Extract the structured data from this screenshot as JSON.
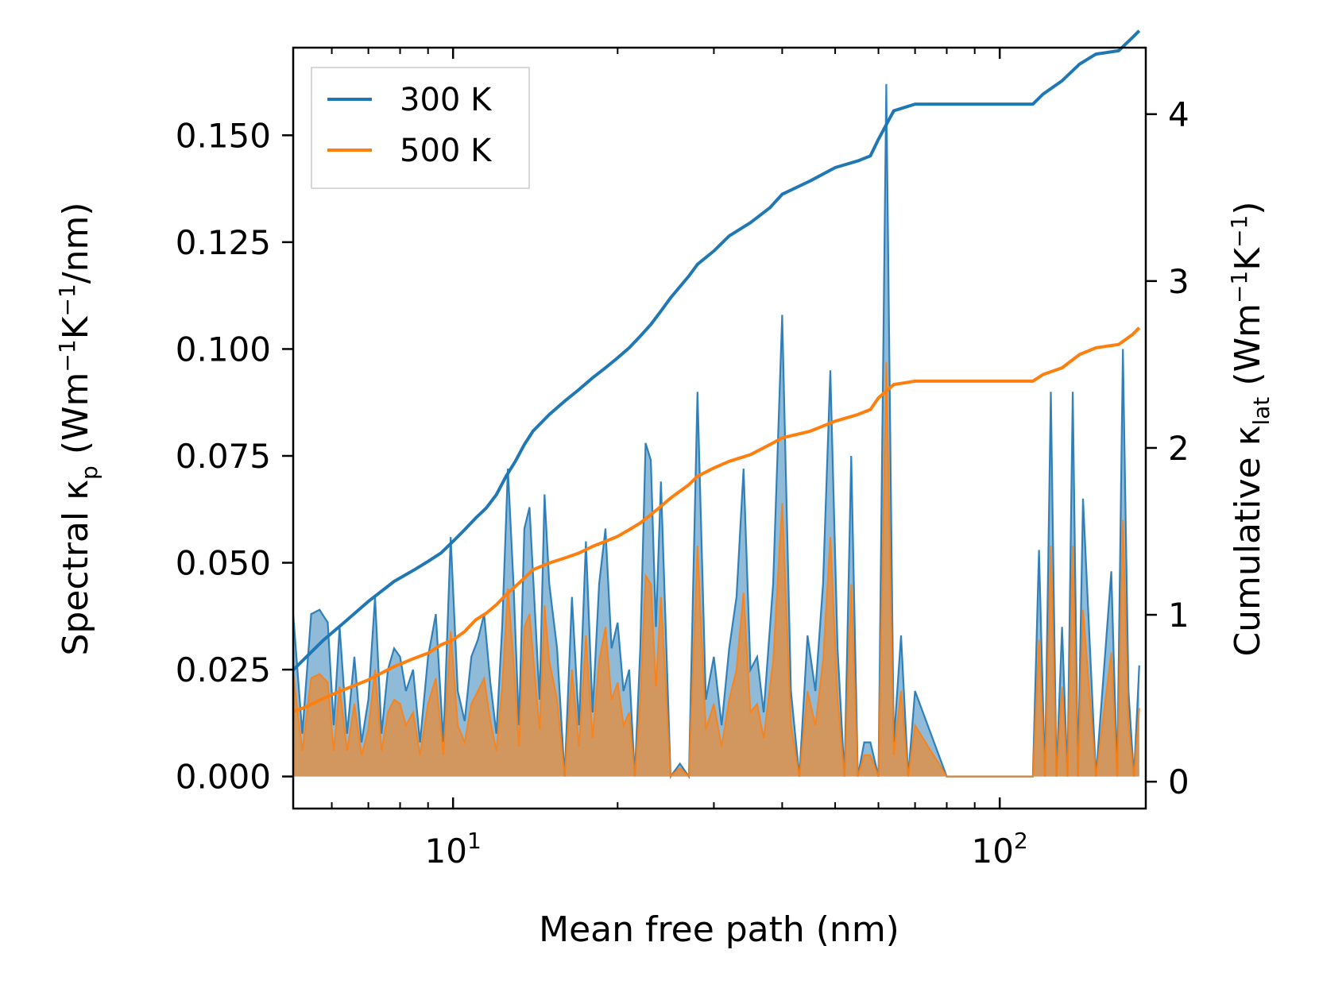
{
  "chart_data": {
    "type": "line",
    "xscale": "log",
    "xlim": [
      5.1,
      185
    ],
    "ylim_left": [
      -0.0075,
      0.1705
    ],
    "ylim_right": [
      -0.1611,
      4.3986
    ],
    "xlabel": "Mean free path (nm)",
    "ylabel_left": {
      "prefix": "Spectral κ",
      "sub": "p",
      "mid1": " (Wm",
      "sup1": "−1",
      "mid2": "K",
      "sup2": "−1",
      "suffix": "/nm)"
    },
    "ylabel_right": {
      "prefix": "Cumulative κ",
      "sub": "lat",
      "mid1": " (Wm",
      "sup1": "−1",
      "mid2": "K",
      "sup2": "−1",
      "suffix": ")"
    },
    "x_ticks": [
      {
        "value": 10,
        "base": "10",
        "exp": "1"
      },
      {
        "value": 100,
        "base": "10",
        "exp": "2"
      }
    ],
    "y_left_ticks": [
      {
        "value": 0.0,
        "label": "0.000"
      },
      {
        "value": 0.025,
        "label": "0.025"
      },
      {
        "value": 0.05,
        "label": "0.050"
      },
      {
        "value": 0.075,
        "label": "0.075"
      },
      {
        "value": 0.1,
        "label": "0.100"
      },
      {
        "value": 0.125,
        "label": "0.125"
      },
      {
        "value": 0.15,
        "label": "0.150"
      }
    ],
    "y_right_ticks": [
      {
        "value": 0,
        "label": "0"
      },
      {
        "value": 1,
        "label": "1"
      },
      {
        "value": 2,
        "label": "2"
      },
      {
        "value": 3,
        "label": "3"
      },
      {
        "value": 4,
        "label": "4"
      }
    ],
    "legend": {
      "position": "upper-left",
      "entries": [
        {
          "label": "300 K",
          "color": "#1f77b4"
        },
        {
          "label": "500 K",
          "color": "#ff7f0e"
        }
      ]
    },
    "series": [
      {
        "name": "300 K spectral",
        "axis": "left",
        "kind": "filled-line",
        "color": "#1f77b4",
        "x": [
          5.1,
          5.3,
          5.5,
          5.7,
          5.9,
          6.05,
          6.2,
          6.4,
          6.6,
          6.8,
          7.0,
          7.2,
          7.4,
          7.6,
          7.8,
          8.0,
          8.2,
          8.45,
          8.7,
          9.0,
          9.3,
          9.6,
          9.9,
          10.2,
          10.5,
          10.8,
          11.1,
          11.4,
          11.7,
          12.0,
          12.3,
          12.6,
          12.9,
          13.2,
          13.5,
          13.8,
          14.1,
          14.4,
          14.7,
          15.0,
          15.5,
          16.0,
          16.5,
          17.0,
          17.5,
          18.0,
          18.5,
          19.0,
          19.5,
          20.0,
          20.5,
          21.0,
          21.5,
          22.0,
          22.5,
          23.0,
          23.5,
          24.0,
          25.0,
          26.0,
          27.0,
          28.0,
          29.0,
          30.0,
          31.0,
          32.0,
          33.0,
          34.0,
          35.0,
          36.0,
          37.0,
          38.5,
          40.0,
          41.5,
          43.0,
          44.5,
          46.0,
          47.5,
          49.0,
          50.5,
          52.0,
          53.5,
          55.0,
          56.5,
          58.0,
          60.0,
          62.0,
          64.0,
          66.0,
          68.0,
          70.0,
          80.0,
          100.0,
          115.0,
          118.0,
          121.0,
          124.0,
          127.0,
          130.0,
          133.0,
          136.0,
          139.0,
          142.0,
          150.0,
          160.0,
          164.0,
          168.0,
          172.0,
          176.0,
          180.0
        ],
        "values": [
          0.038,
          0.01,
          0.038,
          0.039,
          0.036,
          0.012,
          0.035,
          0.01,
          0.028,
          0.008,
          0.018,
          0.042,
          0.01,
          0.025,
          0.03,
          0.028,
          0.02,
          0.025,
          0.008,
          0.028,
          0.038,
          0.008,
          0.056,
          0.02,
          0.013,
          0.028,
          0.032,
          0.038,
          0.022,
          0.01,
          0.035,
          0.072,
          0.045,
          0.012,
          0.058,
          0.063,
          0.04,
          0.018,
          0.066,
          0.045,
          0.03,
          0.0,
          0.042,
          0.012,
          0.055,
          0.015,
          0.045,
          0.058,
          0.03,
          0.036,
          0.02,
          0.025,
          0.0,
          0.03,
          0.078,
          0.074,
          0.035,
          0.069,
          0.0,
          0.003,
          0.0,
          0.09,
          0.018,
          0.028,
          0.012,
          0.03,
          0.042,
          0.072,
          0.025,
          0.028,
          0.015,
          0.045,
          0.108,
          0.02,
          0.0,
          0.033,
          0.02,
          0.045,
          0.095,
          0.03,
          0.0,
          0.075,
          0.0,
          0.008,
          0.008,
          0.0,
          0.162,
          0.008,
          0.033,
          0.0,
          0.02,
          0.0,
          0.0,
          0.0,
          0.053,
          0.0,
          0.09,
          0.0,
          0.035,
          0.0,
          0.09,
          0.0,
          0.065,
          0.0,
          0.048,
          0.0,
          0.1,
          0.02,
          0.0,
          0.026
        ]
      },
      {
        "name": "500 K spectral",
        "axis": "left",
        "kind": "filled-line",
        "color": "#ff7f0e",
        "x": [
          5.1,
          5.3,
          5.5,
          5.7,
          5.9,
          6.05,
          6.2,
          6.4,
          6.6,
          6.8,
          7.0,
          7.2,
          7.4,
          7.6,
          7.8,
          8.0,
          8.2,
          8.45,
          8.7,
          9.0,
          9.3,
          9.6,
          9.9,
          10.2,
          10.5,
          10.8,
          11.1,
          11.4,
          11.7,
          12.0,
          12.3,
          12.6,
          12.9,
          13.2,
          13.5,
          13.8,
          14.1,
          14.4,
          14.7,
          15.0,
          15.5,
          16.0,
          16.5,
          17.0,
          17.5,
          18.0,
          18.5,
          19.0,
          19.5,
          20.0,
          20.5,
          21.0,
          21.5,
          22.0,
          22.5,
          23.0,
          23.5,
          24.0,
          25.0,
          26.0,
          27.0,
          28.0,
          29.0,
          30.0,
          31.0,
          32.0,
          33.0,
          34.0,
          35.0,
          36.0,
          37.0,
          38.5,
          40.0,
          41.5,
          43.0,
          44.5,
          46.0,
          47.5,
          49.0,
          50.5,
          52.0,
          53.5,
          55.0,
          56.5,
          58.0,
          60.0,
          62.0,
          64.0,
          66.0,
          68.0,
          70.0,
          80.0,
          100.0,
          115.0,
          118.0,
          121.0,
          124.0,
          127.0,
          130.0,
          133.0,
          136.0,
          139.0,
          142.0,
          150.0,
          160.0,
          164.0,
          168.0,
          172.0,
          176.0,
          180.0
        ],
        "values": [
          0.024,
          0.006,
          0.023,
          0.024,
          0.022,
          0.006,
          0.021,
          0.006,
          0.017,
          0.005,
          0.011,
          0.025,
          0.006,
          0.015,
          0.018,
          0.017,
          0.012,
          0.015,
          0.005,
          0.017,
          0.023,
          0.005,
          0.034,
          0.012,
          0.008,
          0.017,
          0.02,
          0.023,
          0.013,
          0.006,
          0.021,
          0.044,
          0.027,
          0.007,
          0.035,
          0.038,
          0.024,
          0.011,
          0.04,
          0.027,
          0.018,
          0.0,
          0.025,
          0.007,
          0.033,
          0.009,
          0.027,
          0.035,
          0.018,
          0.022,
          0.012,
          0.015,
          0.0,
          0.018,
          0.047,
          0.045,
          0.021,
          0.042,
          0.0,
          0.002,
          0.0,
          0.054,
          0.011,
          0.017,
          0.007,
          0.018,
          0.025,
          0.043,
          0.015,
          0.017,
          0.009,
          0.027,
          0.064,
          0.012,
          0.0,
          0.02,
          0.012,
          0.027,
          0.056,
          0.018,
          0.0,
          0.045,
          0.0,
          0.005,
          0.005,
          0.0,
          0.097,
          0.005,
          0.02,
          0.0,
          0.012,
          0.0,
          0.0,
          0.0,
          0.032,
          0.0,
          0.054,
          0.0,
          0.021,
          0.0,
          0.054,
          0.0,
          0.039,
          0.0,
          0.029,
          0.0,
          0.06,
          0.012,
          0.0,
          0.016
        ]
      },
      {
        "name": "300 K cumulative",
        "axis": "right",
        "kind": "line",
        "color": "#1f77b4",
        "x": [
          5.1,
          5.4,
          5.8,
          6.3,
          7.0,
          7.8,
          8.5,
          9.0,
          9.5,
          10.0,
          10.5,
          11.0,
          11.5,
          12.0,
          12.5,
          13.0,
          13.5,
          14.0,
          15.0,
          16.0,
          17.0,
          18.0,
          19.0,
          20.0,
          21.0,
          22.0,
          23.0,
          24.0,
          25.0,
          27.0,
          28.0,
          30.0,
          32.0,
          35.0,
          38.0,
          40.0,
          45.0,
          50.0,
          55.0,
          58.0,
          60.0,
          64.0,
          70.0,
          80.0,
          100.0,
          115.0,
          120.0,
          130.0,
          140.0,
          150.0,
          165.0,
          175.0,
          180.0
        ],
        "values": [
          0.67,
          0.75,
          0.85,
          0.95,
          1.08,
          1.2,
          1.27,
          1.32,
          1.37,
          1.44,
          1.51,
          1.58,
          1.64,
          1.72,
          1.83,
          1.92,
          2.02,
          2.1,
          2.2,
          2.28,
          2.35,
          2.42,
          2.48,
          2.54,
          2.6,
          2.67,
          2.74,
          2.82,
          2.9,
          3.03,
          3.1,
          3.18,
          3.27,
          3.35,
          3.44,
          3.52,
          3.6,
          3.68,
          3.72,
          3.75,
          3.85,
          4.02,
          4.06,
          4.06,
          4.06,
          4.06,
          4.12,
          4.2,
          4.3,
          4.36,
          4.38,
          4.46,
          4.5
        ]
      },
      {
        "name": "500 K cumulative",
        "axis": "right",
        "kind": "line",
        "color": "#ff7f0e",
        "x": [
          5.1,
          5.4,
          5.8,
          6.3,
          7.0,
          7.8,
          8.5,
          9.0,
          9.5,
          10.0,
          10.5,
          11.0,
          11.5,
          12.0,
          12.5,
          13.0,
          13.5,
          14.0,
          15.0,
          16.0,
          17.0,
          18.0,
          19.0,
          20.0,
          21.0,
          22.0,
          23.0,
          24.0,
          25.0,
          27.0,
          28.0,
          30.0,
          32.0,
          35.0,
          38.0,
          40.0,
          45.0,
          50.0,
          55.0,
          58.0,
          60.0,
          64.0,
          70.0,
          80.0,
          100.0,
          115.0,
          120.0,
          130.0,
          140.0,
          150.0,
          165.0,
          175.0,
          180.0
        ],
        "values": [
          0.42,
          0.45,
          0.5,
          0.55,
          0.61,
          0.69,
          0.74,
          0.77,
          0.82,
          0.85,
          0.9,
          0.97,
          1.01,
          1.06,
          1.12,
          1.17,
          1.22,
          1.27,
          1.31,
          1.34,
          1.37,
          1.41,
          1.44,
          1.47,
          1.51,
          1.55,
          1.6,
          1.65,
          1.7,
          1.78,
          1.83,
          1.88,
          1.92,
          1.96,
          2.02,
          2.06,
          2.1,
          2.16,
          2.2,
          2.23,
          2.3,
          2.38,
          2.4,
          2.4,
          2.4,
          2.4,
          2.44,
          2.48,
          2.56,
          2.6,
          2.62,
          2.68,
          2.72
        ]
      }
    ]
  }
}
